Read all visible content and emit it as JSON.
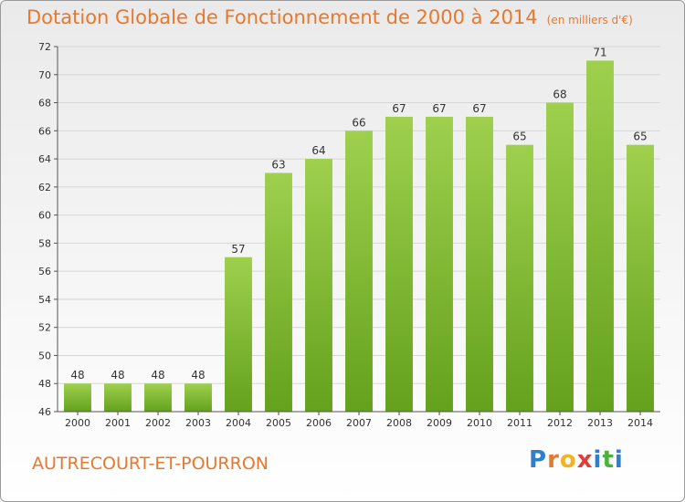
{
  "header": {
    "title": "Dotation Globale de Fonctionnement de 2000 à 2014",
    "subtitle": "(en milliers d'€)"
  },
  "footer": {
    "commune": "AUTRECOURT-ET-POURRON",
    "logo": {
      "letters": [
        {
          "char": "P",
          "color": "#2f7fd0"
        },
        {
          "char": "r",
          "color": "#e8782b"
        },
        {
          "char": "o",
          "color": "#f2b323"
        },
        {
          "char": "x",
          "color": "#e23b3b"
        },
        {
          "char": "i",
          "color": "#2f7fd0"
        },
        {
          "char": "t",
          "color": "#4caf3e"
        },
        {
          "char": "i",
          "color": "#2f7fd0"
        }
      ]
    }
  },
  "chart_data": {
    "type": "bar",
    "categories": [
      "2000",
      "2001",
      "2002",
      "2003",
      "2004",
      "2005",
      "2006",
      "2007",
      "2008",
      "2009",
      "2010",
      "2011",
      "2012",
      "2013",
      "2014"
    ],
    "values": [
      48,
      48,
      48,
      48,
      57,
      63,
      64,
      66,
      67,
      67,
      67,
      65,
      68,
      71,
      65
    ],
    "ylim": [
      46,
      72
    ],
    "yticks": [
      46,
      48,
      50,
      52,
      54,
      56,
      58,
      60,
      62,
      64,
      66,
      68,
      70,
      72
    ],
    "grid": true,
    "bar_color_top": "#9ed04e",
    "bar_color_bottom": "#64a11c"
  }
}
